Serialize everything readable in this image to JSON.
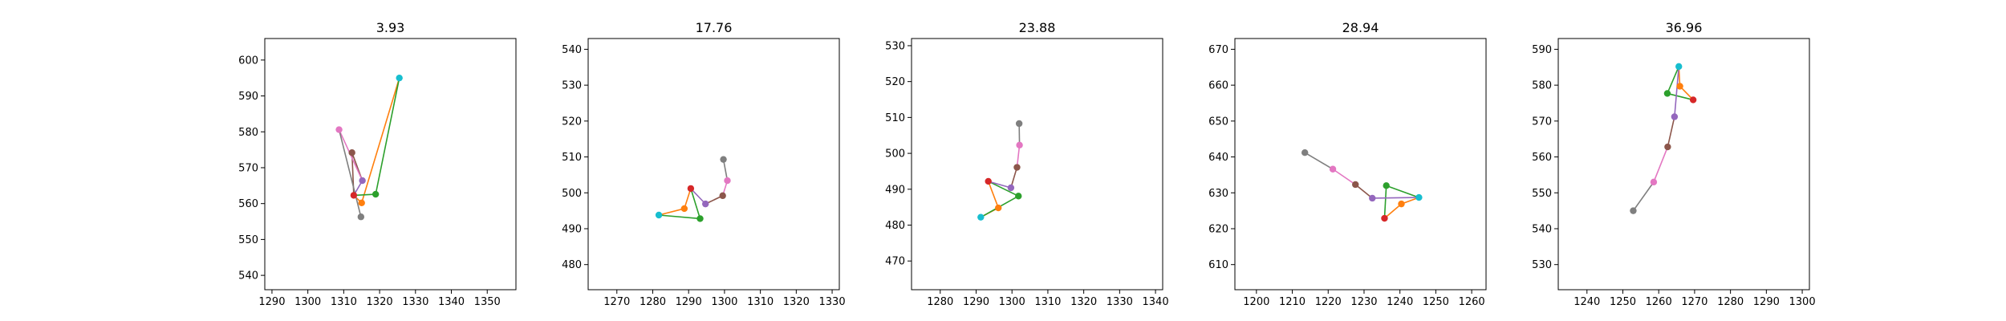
{
  "chart_data": [
    {
      "type": "line",
      "title": "3.93",
      "xlabel": "",
      "ylabel": "",
      "xlim": [
        1288,
        1358
      ],
      "ylim": [
        536,
        606
      ],
      "xticks": [
        1290,
        1300,
        1310,
        1320,
        1330,
        1340,
        1350
      ],
      "yticks": [
        540,
        550,
        560,
        570,
        580,
        590,
        600
      ],
      "points": [
        {
          "x": 1325.5,
          "y": 595.0,
          "color": "#17becf"
        },
        {
          "x": 1315.0,
          "y": 560.2,
          "color": "#ff7f0e"
        },
        {
          "x": 1318.9,
          "y": 562.6,
          "color": "#2ca02c"
        },
        {
          "x": 1312.8,
          "y": 562.3,
          "color": "#d62728"
        },
        {
          "x": 1315.2,
          "y": 566.4,
          "color": "#9467bd"
        },
        {
          "x": 1312.3,
          "y": 574.2,
          "color": "#8c564b"
        },
        {
          "x": 1308.7,
          "y": 580.6,
          "color": "#e377c2"
        },
        {
          "x": 1314.8,
          "y": 556.3,
          "color": "#7f7f7f"
        }
      ],
      "segments": [
        {
          "from": 0,
          "to": 1,
          "color": "#ff7f0e"
        },
        {
          "from": 1,
          "to": 3,
          "color": "#ff7f0e"
        },
        {
          "from": 0,
          "to": 2,
          "color": "#2ca02c"
        },
        {
          "from": 2,
          "to": 3,
          "color": "#2ca02c"
        },
        {
          "from": 3,
          "to": 4,
          "color": "#9467bd"
        },
        {
          "from": 4,
          "to": 5,
          "color": "#8c564b"
        },
        {
          "from": 5,
          "to": 3,
          "color": "#8c564b"
        },
        {
          "from": 4,
          "to": 6,
          "color": "#e377c2"
        },
        {
          "from": 6,
          "to": 7,
          "color": "#7f7f7f"
        }
      ]
    },
    {
      "type": "line",
      "title": "17.76",
      "xlabel": "",
      "ylabel": "",
      "xlim": [
        1262,
        1332
      ],
      "ylim": [
        473,
        543
      ],
      "xticks": [
        1270,
        1280,
        1290,
        1300,
        1310,
        1320,
        1330
      ],
      "yticks": [
        480,
        490,
        500,
        510,
        520,
        530,
        540
      ],
      "points": [
        {
          "x": 1281.7,
          "y": 493.8,
          "color": "#17becf"
        },
        {
          "x": 1288.8,
          "y": 495.6,
          "color": "#ff7f0e"
        },
        {
          "x": 1293.2,
          "y": 492.8,
          "color": "#2ca02c"
        },
        {
          "x": 1290.6,
          "y": 501.2,
          "color": "#d62728"
        },
        {
          "x": 1294.7,
          "y": 496.9,
          "color": "#9467bd"
        },
        {
          "x": 1299.5,
          "y": 499.2,
          "color": "#8c564b"
        },
        {
          "x": 1300.8,
          "y": 503.4,
          "color": "#e377c2"
        },
        {
          "x": 1299.7,
          "y": 509.3,
          "color": "#7f7f7f"
        }
      ],
      "segments": [
        {
          "from": 0,
          "to": 1,
          "color": "#ff7f0e"
        },
        {
          "from": 1,
          "to": 3,
          "color": "#ff7f0e"
        },
        {
          "from": 0,
          "to": 2,
          "color": "#2ca02c"
        },
        {
          "from": 2,
          "to": 3,
          "color": "#2ca02c"
        },
        {
          "from": 3,
          "to": 4,
          "color": "#9467bd"
        },
        {
          "from": 4,
          "to": 5,
          "color": "#8c564b"
        },
        {
          "from": 5,
          "to": 6,
          "color": "#e377c2"
        },
        {
          "from": 6,
          "to": 7,
          "color": "#7f7f7f"
        }
      ]
    },
    {
      "type": "line",
      "title": "23.88",
      "xlabel": "",
      "ylabel": "",
      "xlim": [
        1272,
        1342
      ],
      "ylim": [
        462,
        532
      ],
      "xticks": [
        1280,
        1290,
        1300,
        1310,
        1320,
        1330,
        1340
      ],
      "yticks": [
        470,
        480,
        490,
        500,
        510,
        520,
        530
      ],
      "points": [
        {
          "x": 1291.3,
          "y": 482.2,
          "color": "#17becf"
        },
        {
          "x": 1296.2,
          "y": 484.8,
          "color": "#ff7f0e"
        },
        {
          "x": 1301.8,
          "y": 488.1,
          "color": "#2ca02c"
        },
        {
          "x": 1293.4,
          "y": 492.2,
          "color": "#d62728"
        },
        {
          "x": 1299.7,
          "y": 490.4,
          "color": "#9467bd"
        },
        {
          "x": 1301.4,
          "y": 496.1,
          "color": "#8c564b"
        },
        {
          "x": 1302.1,
          "y": 502.3,
          "color": "#e377c2"
        },
        {
          "x": 1302.0,
          "y": 508.3,
          "color": "#7f7f7f"
        }
      ],
      "segments": [
        {
          "from": 0,
          "to": 1,
          "color": "#ff7f0e"
        },
        {
          "from": 1,
          "to": 3,
          "color": "#ff7f0e"
        },
        {
          "from": 0,
          "to": 2,
          "color": "#2ca02c"
        },
        {
          "from": 2,
          "to": 3,
          "color": "#2ca02c"
        },
        {
          "from": 3,
          "to": 4,
          "color": "#9467bd"
        },
        {
          "from": 4,
          "to": 5,
          "color": "#8c564b"
        },
        {
          "from": 5,
          "to": 6,
          "color": "#e377c2"
        },
        {
          "from": 6,
          "to": 7,
          "color": "#7f7f7f"
        }
      ]
    },
    {
      "type": "line",
      "title": "28.94",
      "xlabel": "",
      "ylabel": "",
      "xlim": [
        1194,
        1264
      ],
      "ylim": [
        603,
        673
      ],
      "xticks": [
        1200,
        1210,
        1220,
        1230,
        1240,
        1250,
        1260
      ],
      "yticks": [
        610,
        620,
        630,
        640,
        650,
        660,
        670
      ],
      "points": [
        {
          "x": 1245.3,
          "y": 628.7,
          "color": "#17becf"
        },
        {
          "x": 1240.4,
          "y": 626.9,
          "color": "#ff7f0e"
        },
        {
          "x": 1236.2,
          "y": 632.0,
          "color": "#2ca02c"
        },
        {
          "x": 1235.7,
          "y": 622.9,
          "color": "#d62728"
        },
        {
          "x": 1232.3,
          "y": 628.5,
          "color": "#9467bd"
        },
        {
          "x": 1227.6,
          "y": 632.3,
          "color": "#8c564b"
        },
        {
          "x": 1221.3,
          "y": 636.6,
          "color": "#e377c2"
        },
        {
          "x": 1213.5,
          "y": 641.2,
          "color": "#7f7f7f"
        }
      ],
      "segments": [
        {
          "from": 0,
          "to": 1,
          "color": "#ff7f0e"
        },
        {
          "from": 1,
          "to": 3,
          "color": "#ff7f0e"
        },
        {
          "from": 0,
          "to": 2,
          "color": "#2ca02c"
        },
        {
          "from": 2,
          "to": 3,
          "color": "#2ca02c"
        },
        {
          "from": 0,
          "to": 4,
          "color": "#9467bd"
        },
        {
          "from": 4,
          "to": 5,
          "color": "#8c564b"
        },
        {
          "from": 5,
          "to": 6,
          "color": "#e377c2"
        },
        {
          "from": 6,
          "to": 7,
          "color": "#7f7f7f"
        }
      ]
    },
    {
      "type": "line",
      "title": "36.96",
      "xlabel": "",
      "ylabel": "",
      "xlim": [
        1232,
        1302
      ],
      "ylim": [
        523,
        593
      ],
      "xticks": [
        1240,
        1250,
        1260,
        1270,
        1280,
        1290,
        1300
      ],
      "yticks": [
        530,
        540,
        550,
        560,
        570,
        580,
        590
      ],
      "points": [
        {
          "x": 1265.6,
          "y": 585.2,
          "color": "#17becf"
        },
        {
          "x": 1265.9,
          "y": 579.7,
          "color": "#ff7f0e"
        },
        {
          "x": 1262.4,
          "y": 577.7,
          "color": "#2ca02c"
        },
        {
          "x": 1269.6,
          "y": 575.9,
          "color": "#d62728"
        },
        {
          "x": 1264.4,
          "y": 571.2,
          "color": "#9467bd"
        },
        {
          "x": 1262.5,
          "y": 562.8,
          "color": "#8c564b"
        },
        {
          "x": 1258.6,
          "y": 553.0,
          "color": "#e377c2"
        },
        {
          "x": 1252.9,
          "y": 545.0,
          "color": "#7f7f7f"
        }
      ],
      "segments": [
        {
          "from": 0,
          "to": 1,
          "color": "#ff7f0e"
        },
        {
          "from": 1,
          "to": 3,
          "color": "#ff7f0e"
        },
        {
          "from": 0,
          "to": 2,
          "color": "#2ca02c"
        },
        {
          "from": 2,
          "to": 3,
          "color": "#2ca02c"
        },
        {
          "from": 0,
          "to": 4,
          "color": "#9467bd"
        },
        {
          "from": 4,
          "to": 5,
          "color": "#8c564b"
        },
        {
          "from": 5,
          "to": 6,
          "color": "#e377c2"
        },
        {
          "from": 6,
          "to": 7,
          "color": "#7f7f7f"
        }
      ]
    }
  ]
}
